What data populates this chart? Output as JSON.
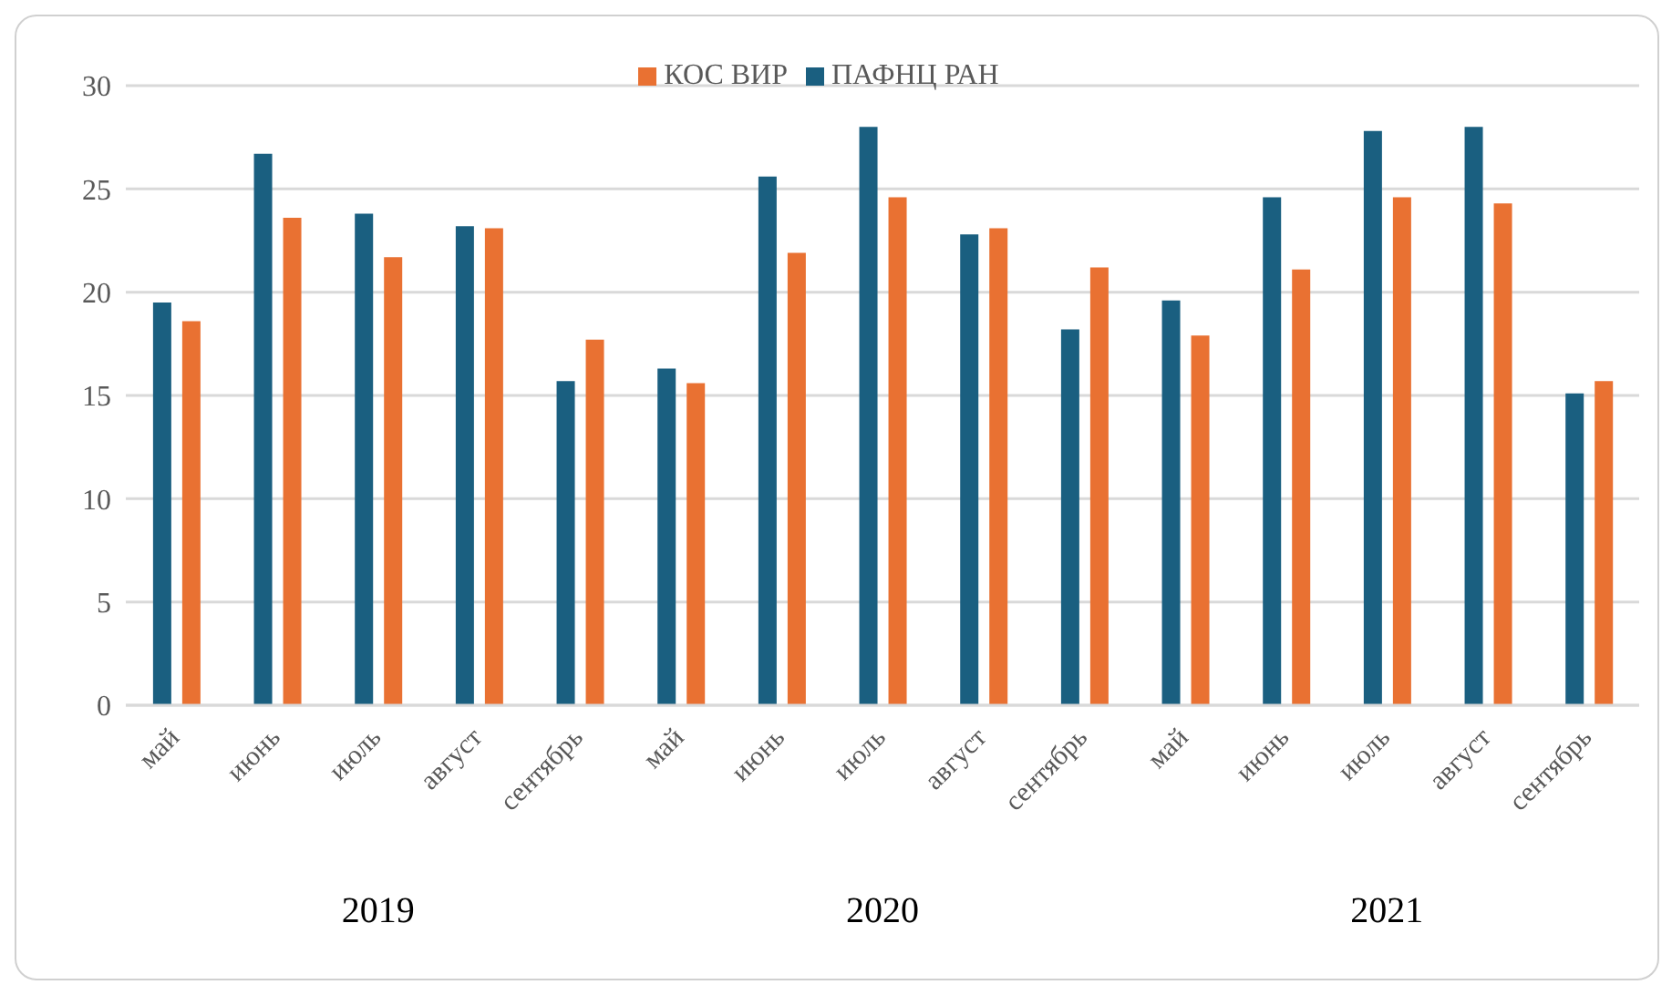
{
  "chart_data": {
    "type": "bar",
    "categories": [
      "май",
      "июнь",
      "июль",
      "август",
      "сентябрь",
      "май",
      "июнь",
      "июль",
      "август",
      "сентябрь",
      "май",
      "июнь",
      "июль",
      "август",
      "сентябрь"
    ],
    "series": [
      {
        "name": "ПАФНЦ РАН",
        "color": "#1a5f80",
        "values": [
          19.5,
          26.7,
          23.8,
          23.2,
          15.7,
          16.3,
          25.6,
          28.0,
          22.8,
          18.2,
          19.6,
          24.6,
          27.8,
          28.0,
          15.1
        ]
      },
      {
        "name": "КОС ВИР",
        "color": "#e97132",
        "values": [
          18.6,
          23.6,
          21.7,
          23.1,
          17.7,
          15.6,
          21.9,
          24.6,
          23.1,
          21.2,
          17.9,
          21.1,
          24.6,
          24.3,
          15.7
        ]
      }
    ],
    "ylim": [
      0,
      30
    ],
    "yticks": [
      0,
      5,
      10,
      15,
      20,
      25,
      30
    ],
    "grid": "y",
    "legend": "top",
    "annotations": [
      "2019",
      "2020",
      "2021"
    ]
  }
}
